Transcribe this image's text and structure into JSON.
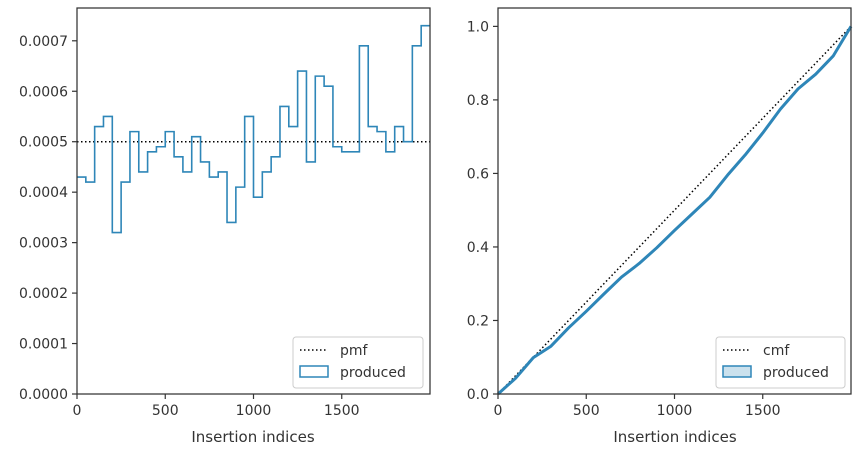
{
  "chart_data": [
    {
      "type": "step",
      "xlabel": "Insertion indices",
      "ylabel": "",
      "xlim": [
        0,
        2000
      ],
      "ylim": [
        0,
        0.000765
      ],
      "xticks": [
        0,
        500,
        1000,
        1500
      ],
      "xtick_labels": [
        "0",
        "500",
        "1000",
        "1500"
      ],
      "yticks": [
        0,
        0.0001,
        0.0002,
        0.0003,
        0.0004,
        0.0005,
        0.0006,
        0.0007
      ],
      "ytick_labels": [
        "0.0000",
        "0.0001",
        "0.0002",
        "0.0003",
        "0.0004",
        "0.0005",
        "0.0006",
        "0.0007"
      ],
      "legend_position": "lower-right",
      "reference": {
        "name": "pmf",
        "value": 0.0005,
        "style": "dotted",
        "color": "#000000"
      },
      "histogram": {
        "name": "produced",
        "color": "#2e86b8",
        "bin_width": 50,
        "bin_start": 0,
        "values": [
          0.00043,
          0.00042,
          0.00053,
          0.00055,
          0.00032,
          0.00042,
          0.00052,
          0.00044,
          0.00048,
          0.00049,
          0.00052,
          0.00047,
          0.00044,
          0.00051,
          0.00046,
          0.00043,
          0.00044,
          0.00034,
          0.00041,
          0.00055,
          0.00039,
          0.00044,
          0.00047,
          0.00057,
          0.00053,
          0.00064,
          0.00046,
          0.00063,
          0.00061,
          0.00049,
          0.00048,
          0.00048,
          0.00069,
          0.00053,
          0.00052,
          0.00048,
          0.00053,
          0.0005,
          0.00069,
          0.00073
        ]
      }
    },
    {
      "type": "line",
      "xlabel": "Insertion indices",
      "ylabel": "",
      "xlim": [
        0,
        2000
      ],
      "ylim": [
        0,
        1.05
      ],
      "xticks": [
        0,
        500,
        1000,
        1500
      ],
      "xtick_labels": [
        "0",
        "500",
        "1000",
        "1500"
      ],
      "yticks": [
        0,
        0.2,
        0.4,
        0.6,
        0.8,
        1.0
      ],
      "ytick_labels": [
        "0.0",
        "0.2",
        "0.4",
        "0.6",
        "0.8",
        "1.0"
      ],
      "legend_position": "lower-right",
      "reference": {
        "name": "cmf",
        "x": [
          0,
          2000
        ],
        "y": [
          0,
          1.0
        ],
        "style": "dotted",
        "color": "#000000"
      },
      "series": [
        {
          "name": "produced",
          "color": "#2e86b8",
          "x": [
            0,
            100,
            200,
            300,
            400,
            500,
            600,
            700,
            800,
            900,
            1000,
            1100,
            1200,
            1300,
            1400,
            1500,
            1600,
            1700,
            1800,
            1900,
            2000
          ],
          "y": [
            0,
            0.043,
            0.099,
            0.13,
            0.18,
            0.225,
            0.272,
            0.318,
            0.355,
            0.398,
            0.445,
            0.49,
            0.535,
            0.595,
            0.65,
            0.71,
            0.775,
            0.83,
            0.87,
            0.92,
            1.0
          ]
        }
      ]
    }
  ]
}
